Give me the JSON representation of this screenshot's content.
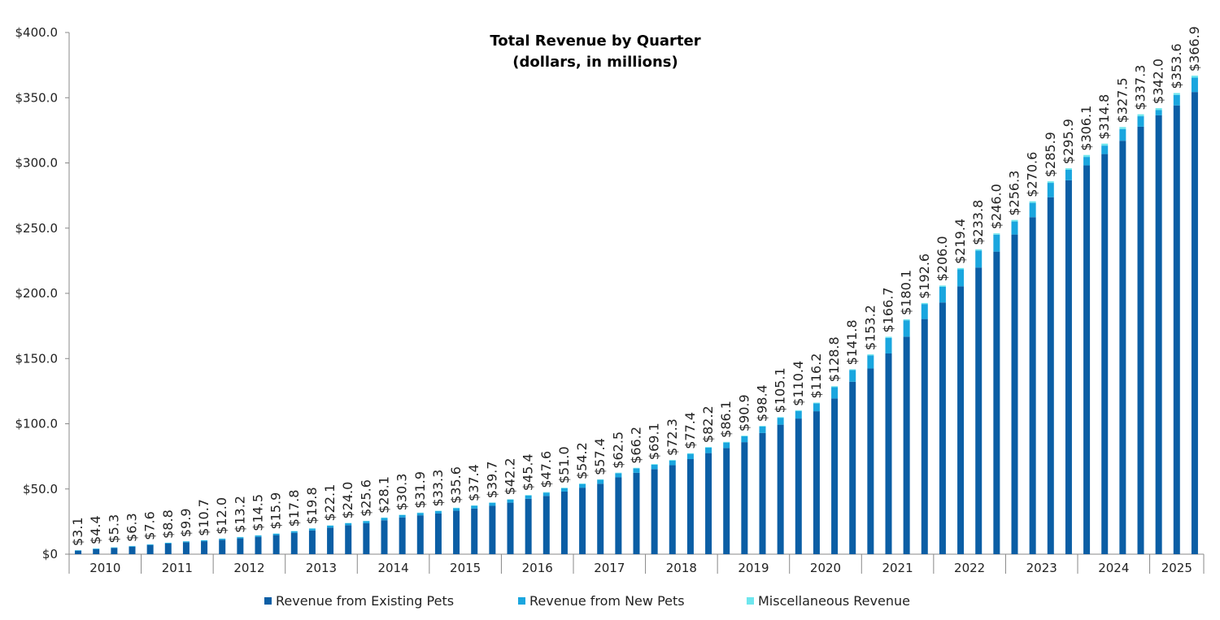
{
  "chart_data": {
    "type": "stacked-bar",
    "title": "Total Revenue by Quarter",
    "subtitle": "(dollars, in millions)",
    "categories": [
      "2010",
      "2010",
      "2010",
      "2010",
      "2011",
      "2011",
      "2011",
      "2011",
      "2012",
      "2012",
      "2012",
      "2012",
      "2013",
      "2013",
      "2013",
      "2013",
      "2014",
      "2014",
      "2014",
      "2014",
      "2015",
      "2015",
      "2015",
      "2015",
      "2016",
      "2016",
      "2016",
      "2016",
      "2017",
      "2017",
      "2017",
      "2017",
      "2018",
      "2018",
      "2018",
      "2018",
      "2019",
      "2019",
      "2019",
      "2019",
      "2020",
      "2020",
      "2020",
      "2020",
      "2021",
      "2021",
      "2021",
      "2021",
      "2022",
      "2022",
      "2022",
      "2022",
      "2023",
      "2023",
      "2023",
      "2023",
      "2024",
      "2024",
      "2024",
      "2024",
      "2025",
      "2025",
      "2025"
    ],
    "series": [
      {
        "name": "Revenue from Existing Pets",
        "color": "#0b5ea5",
        "values": [
          2.7,
          3.9,
          4.8,
          5.7,
          7.0,
          8.1,
          9.1,
          9.9,
          11.0,
          12.1,
          13.3,
          14.6,
          16.4,
          18.2,
          20.4,
          22.2,
          23.7,
          26.0,
          28.2,
          29.8,
          31.2,
          33.3,
          35.0,
          37.1,
          39.5,
          42.5,
          44.7,
          48.0,
          51.0,
          54.0,
          58.9,
          62.4,
          65.2,
          68.2,
          72.9,
          77.5,
          81.4,
          85.9,
          92.9,
          99.3,
          104.0,
          109.6,
          119.4,
          132.2,
          142.4,
          153.9,
          166.8,
          180.3,
          193.0,
          205.4,
          219.8,
          232.0,
          245.1,
          258.4,
          273.7,
          286.7,
          298.1,
          306.8,
          317.0,
          327.8,
          336.5,
          344.1,
          354.4
        ]
      },
      {
        "name": "Revenue from New Pets",
        "color": "#1aa6df",
        "values": [
          0.3,
          0.4,
          0.4,
          0.5,
          0.5,
          0.6,
          0.7,
          0.7,
          0.8,
          0.9,
          1.0,
          1.1,
          1.2,
          1.4,
          1.5,
          1.6,
          1.6,
          1.8,
          1.8,
          1.8,
          1.8,
          2.0,
          2.1,
          2.3,
          2.3,
          2.5,
          2.5,
          2.6,
          2.8,
          3.0,
          3.2,
          3.4,
          3.4,
          3.6,
          4.0,
          4.2,
          4.2,
          4.5,
          5.0,
          5.3,
          5.8,
          6.0,
          8.8,
          9.0,
          10.0,
          12.0,
          12.5,
          11.5,
          12.0,
          13.0,
          13.0,
          13.0,
          10.0,
          11.0,
          11.0,
          8.0,
          6.5,
          6.5,
          9.0,
          8.0,
          4.0,
          8.0,
          11.0
        ]
      },
      {
        "name": "Miscellaneous Revenue",
        "color": "#6ee6ee",
        "values": [
          0.1,
          0.1,
          0.1,
          0.1,
          0.1,
          0.1,
          0.1,
          0.1,
          0.2,
          0.2,
          0.2,
          0.2,
          0.2,
          0.2,
          0.2,
          0.2,
          0.3,
          0.3,
          0.3,
          0.3,
          0.3,
          0.3,
          0.3,
          0.3,
          0.4,
          0.4,
          0.4,
          0.4,
          0.4,
          0.4,
          0.4,
          0.4,
          0.5,
          0.5,
          0.5,
          0.5,
          0.5,
          0.5,
          0.5,
          0.5,
          0.6,
          0.6,
          0.6,
          0.6,
          0.8,
          0.8,
          0.8,
          0.8,
          1.0,
          1.0,
          1.0,
          1.0,
          1.2,
          1.2,
          1.2,
          1.2,
          1.5,
          1.5,
          1.5,
          1.5,
          1.5,
          1.5,
          1.5
        ]
      }
    ],
    "totals": {
      "values": [
        3.1,
        4.4,
        5.3,
        6.3,
        7.6,
        8.8,
        9.9,
        10.7,
        12.0,
        13.2,
        14.5,
        15.9,
        17.8,
        19.8,
        22.1,
        24.0,
        25.6,
        28.1,
        30.3,
        31.9,
        33.3,
        35.6,
        37.4,
        39.7,
        42.2,
        45.4,
        47.6,
        51.0,
        54.2,
        57.4,
        62.5,
        66.2,
        69.1,
        72.3,
        77.4,
        82.2,
        86.1,
        90.9,
        98.4,
        105.1,
        110.4,
        116.2,
        128.8,
        141.8,
        153.2,
        166.7,
        180.1,
        192.6,
        206.0,
        219.4,
        233.8,
        246.0,
        256.3,
        270.6,
        285.9,
        295.9,
        306.1,
        314.8,
        327.5,
        337.3,
        342.0,
        353.6,
        366.9
      ],
      "value_labels": [
        "$3.1",
        "$4.4",
        "$5.3",
        "$6.3",
        "$7.6",
        "$8.8",
        "$9.9",
        "$10.7",
        "$12.0",
        "$13.2",
        "$14.5",
        "$15.9",
        "$17.8",
        "$19.8",
        "$22.1",
        "$24.0",
        "$25.6",
        "$28.1",
        "$30.3",
        "$31.9",
        "$33.3",
        "$35.6",
        "$37.4",
        "$39.7",
        "$42.2",
        "$45.4",
        "$47.6",
        "$51.0",
        "$54.2",
        "$57.4",
        "$62.5",
        "$66.2",
        "$69.1",
        "$72.3",
        "$77.4",
        "$82.2",
        "$86.1",
        "$90.9",
        "$98.4",
        "$105.1",
        "$110.4",
        "$116.2",
        "$128.8",
        "$141.8",
        "$153.2",
        "$166.7",
        "$180.1",
        "$192.6",
        "$206.0",
        "$219.4",
        "$233.8",
        "$246.0",
        "$256.3",
        "$270.6",
        "$285.9",
        "$295.9",
        "$306.1",
        "$314.8",
        "$327.5",
        "$337.3",
        "$342.0",
        "$353.6",
        "$366.9"
      ]
    },
    "ylim": [
      0,
      400
    ],
    "yticks": [
      {
        "value": 0,
        "label": "$0"
      },
      {
        "value": 50,
        "label": "$50.0"
      },
      {
        "value": 100,
        "label": "$100.0"
      },
      {
        "value": 150,
        "label": "$150.0"
      },
      {
        "value": 200,
        "label": "$200.0"
      },
      {
        "value": 250,
        "label": "$250.0"
      },
      {
        "value": 300,
        "label": "$300.0"
      },
      {
        "value": 350,
        "label": "$350.0"
      },
      {
        "value": 400,
        "label": "$400.0"
      }
    ],
    "legend": "bottom"
  }
}
